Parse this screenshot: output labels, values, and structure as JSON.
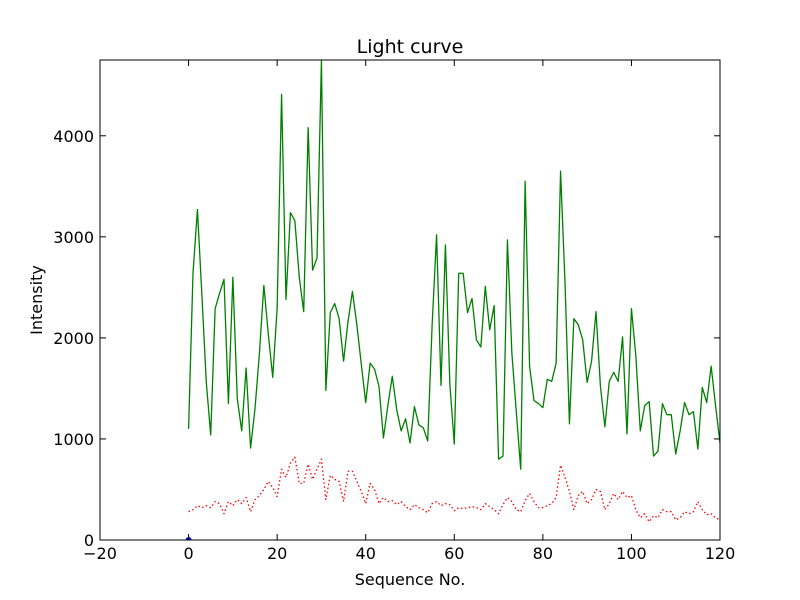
{
  "chart_data": {
    "type": "line",
    "title": "Light curve",
    "xlabel": "Sequence No.",
    "ylabel": "Intensity",
    "xlim": [
      -20,
      120
    ],
    "ylim": [
      0,
      4750
    ],
    "xticks": [
      -20,
      0,
      20,
      40,
      60,
      80,
      100,
      120
    ],
    "yticks": [
      0,
      1000,
      2000,
      3000,
      4000
    ],
    "grid": false,
    "legend": "none",
    "series": [
      {
        "style": "solid",
        "color": "#008000",
        "x": [
          0,
          1,
          2,
          3,
          4,
          5,
          6,
          7,
          8,
          9,
          10,
          11,
          12,
          13,
          14,
          15,
          16,
          17,
          18,
          19,
          20,
          21,
          22,
          23,
          24,
          25,
          26,
          27,
          28,
          29,
          30,
          31,
          32,
          33,
          34,
          35,
          36,
          37,
          38,
          39,
          40,
          41,
          42,
          43,
          44,
          45,
          46,
          47,
          48,
          49,
          50,
          51,
          52,
          53,
          54,
          55,
          56,
          57,
          58,
          59,
          60,
          61,
          62,
          63,
          64,
          65,
          66,
          67,
          68,
          69,
          70,
          71,
          72,
          73,
          74,
          75,
          76,
          77,
          78,
          79,
          80,
          81,
          82,
          83,
          84,
          85,
          86,
          87,
          88,
          89,
          90,
          91,
          92,
          93,
          94,
          95,
          96,
          97,
          98,
          99,
          100,
          101,
          102,
          103,
          104,
          105,
          106,
          107,
          108,
          109,
          110,
          111,
          112,
          113,
          114,
          115,
          116,
          117,
          118,
          119,
          120
        ],
        "values": [
          1100,
          2640,
          3270,
          2430,
          1560,
          1040,
          2290,
          2440,
          2580,
          1350,
          2600,
          1400,
          1080,
          1700,
          910,
          1300,
          1850,
          2520,
          2040,
          1610,
          2290,
          4410,
          2380,
          3240,
          3160,
          2600,
          2260,
          4080,
          2670,
          2790,
          4750,
          1480,
          2250,
          2340,
          2190,
          1770,
          2160,
          2460,
          2130,
          1740,
          1360,
          1750,
          1690,
          1520,
          1010,
          1330,
          1620,
          1290,
          1080,
          1200,
          960,
          1320,
          1140,
          1110,
          980,
          2130,
          3020,
          1530,
          2920,
          1540,
          950,
          2640,
          2640,
          2250,
          2390,
          1980,
          1910,
          2510,
          2080,
          2320,
          800,
          830,
          2970,
          1850,
          1270,
          700,
          3550,
          1720,
          1380,
          1350,
          1310,
          1590,
          1570,
          1750,
          3650,
          2550,
          1150,
          2190,
          2130,
          1980,
          1560,
          1770,
          2260,
          1520,
          1120,
          1570,
          1660,
          1570,
          2010,
          1050,
          2290,
          1820,
          1080,
          1330,
          1370,
          830,
          880,
          1350,
          1240,
          1240,
          850,
          1080,
          1360,
          1240,
          1270,
          900,
          1510,
          1360,
          1720,
          1330,
          960
        ]
      },
      {
        "style": "dotted",
        "color": "#ff0000",
        "x": [
          0,
          1,
          2,
          3,
          4,
          5,
          6,
          7,
          8,
          9,
          10,
          11,
          12,
          13,
          14,
          15,
          16,
          17,
          18,
          19,
          20,
          21,
          22,
          23,
          24,
          25,
          26,
          27,
          28,
          29,
          30,
          31,
          32,
          33,
          34,
          35,
          36,
          37,
          38,
          39,
          40,
          41,
          42,
          43,
          44,
          45,
          46,
          47,
          48,
          49,
          50,
          51,
          52,
          53,
          54,
          55,
          56,
          57,
          58,
          59,
          60,
          61,
          62,
          63,
          64,
          65,
          66,
          67,
          68,
          69,
          70,
          71,
          72,
          73,
          74,
          75,
          76,
          77,
          78,
          79,
          80,
          81,
          82,
          83,
          84,
          85,
          86,
          87,
          88,
          89,
          90,
          91,
          92,
          93,
          94,
          95,
          96,
          97,
          98,
          99,
          100,
          101,
          102,
          103,
          104,
          105,
          106,
          107,
          108,
          109,
          110,
          111,
          112,
          113,
          114,
          115,
          116,
          117,
          118,
          119,
          120
        ],
        "values": [
          280,
          300,
          340,
          320,
          340,
          320,
          380,
          360,
          260,
          380,
          340,
          400,
          360,
          420,
          280,
          400,
          440,
          500,
          580,
          520,
          430,
          700,
          620,
          760,
          820,
          560,
          560,
          750,
          600,
          700,
          800,
          400,
          640,
          600,
          580,
          380,
          680,
          680,
          580,
          480,
          360,
          560,
          500,
          360,
          420,
          380,
          390,
          350,
          380,
          330,
          300,
          350,
          320,
          300,
          270,
          360,
          380,
          340,
          360,
          350,
          290,
          320,
          310,
          320,
          330,
          320,
          300,
          360,
          330,
          300,
          260,
          350,
          420,
          380,
          300,
          280,
          390,
          460,
          380,
          320,
          320,
          340,
          360,
          420,
          740,
          620,
          480,
          300,
          440,
          480,
          360,
          400,
          500,
          480,
          300,
          360,
          460,
          400,
          480,
          420,
          440,
          300,
          220,
          260,
          180,
          240,
          220,
          300,
          280,
          280,
          200,
          220,
          280,
          260,
          280,
          380,
          300,
          250,
          260,
          220,
          200
        ]
      },
      {
        "style": "markers",
        "color": "#0000ff",
        "x": [
          0
        ],
        "values": [
          0
        ]
      }
    ]
  }
}
